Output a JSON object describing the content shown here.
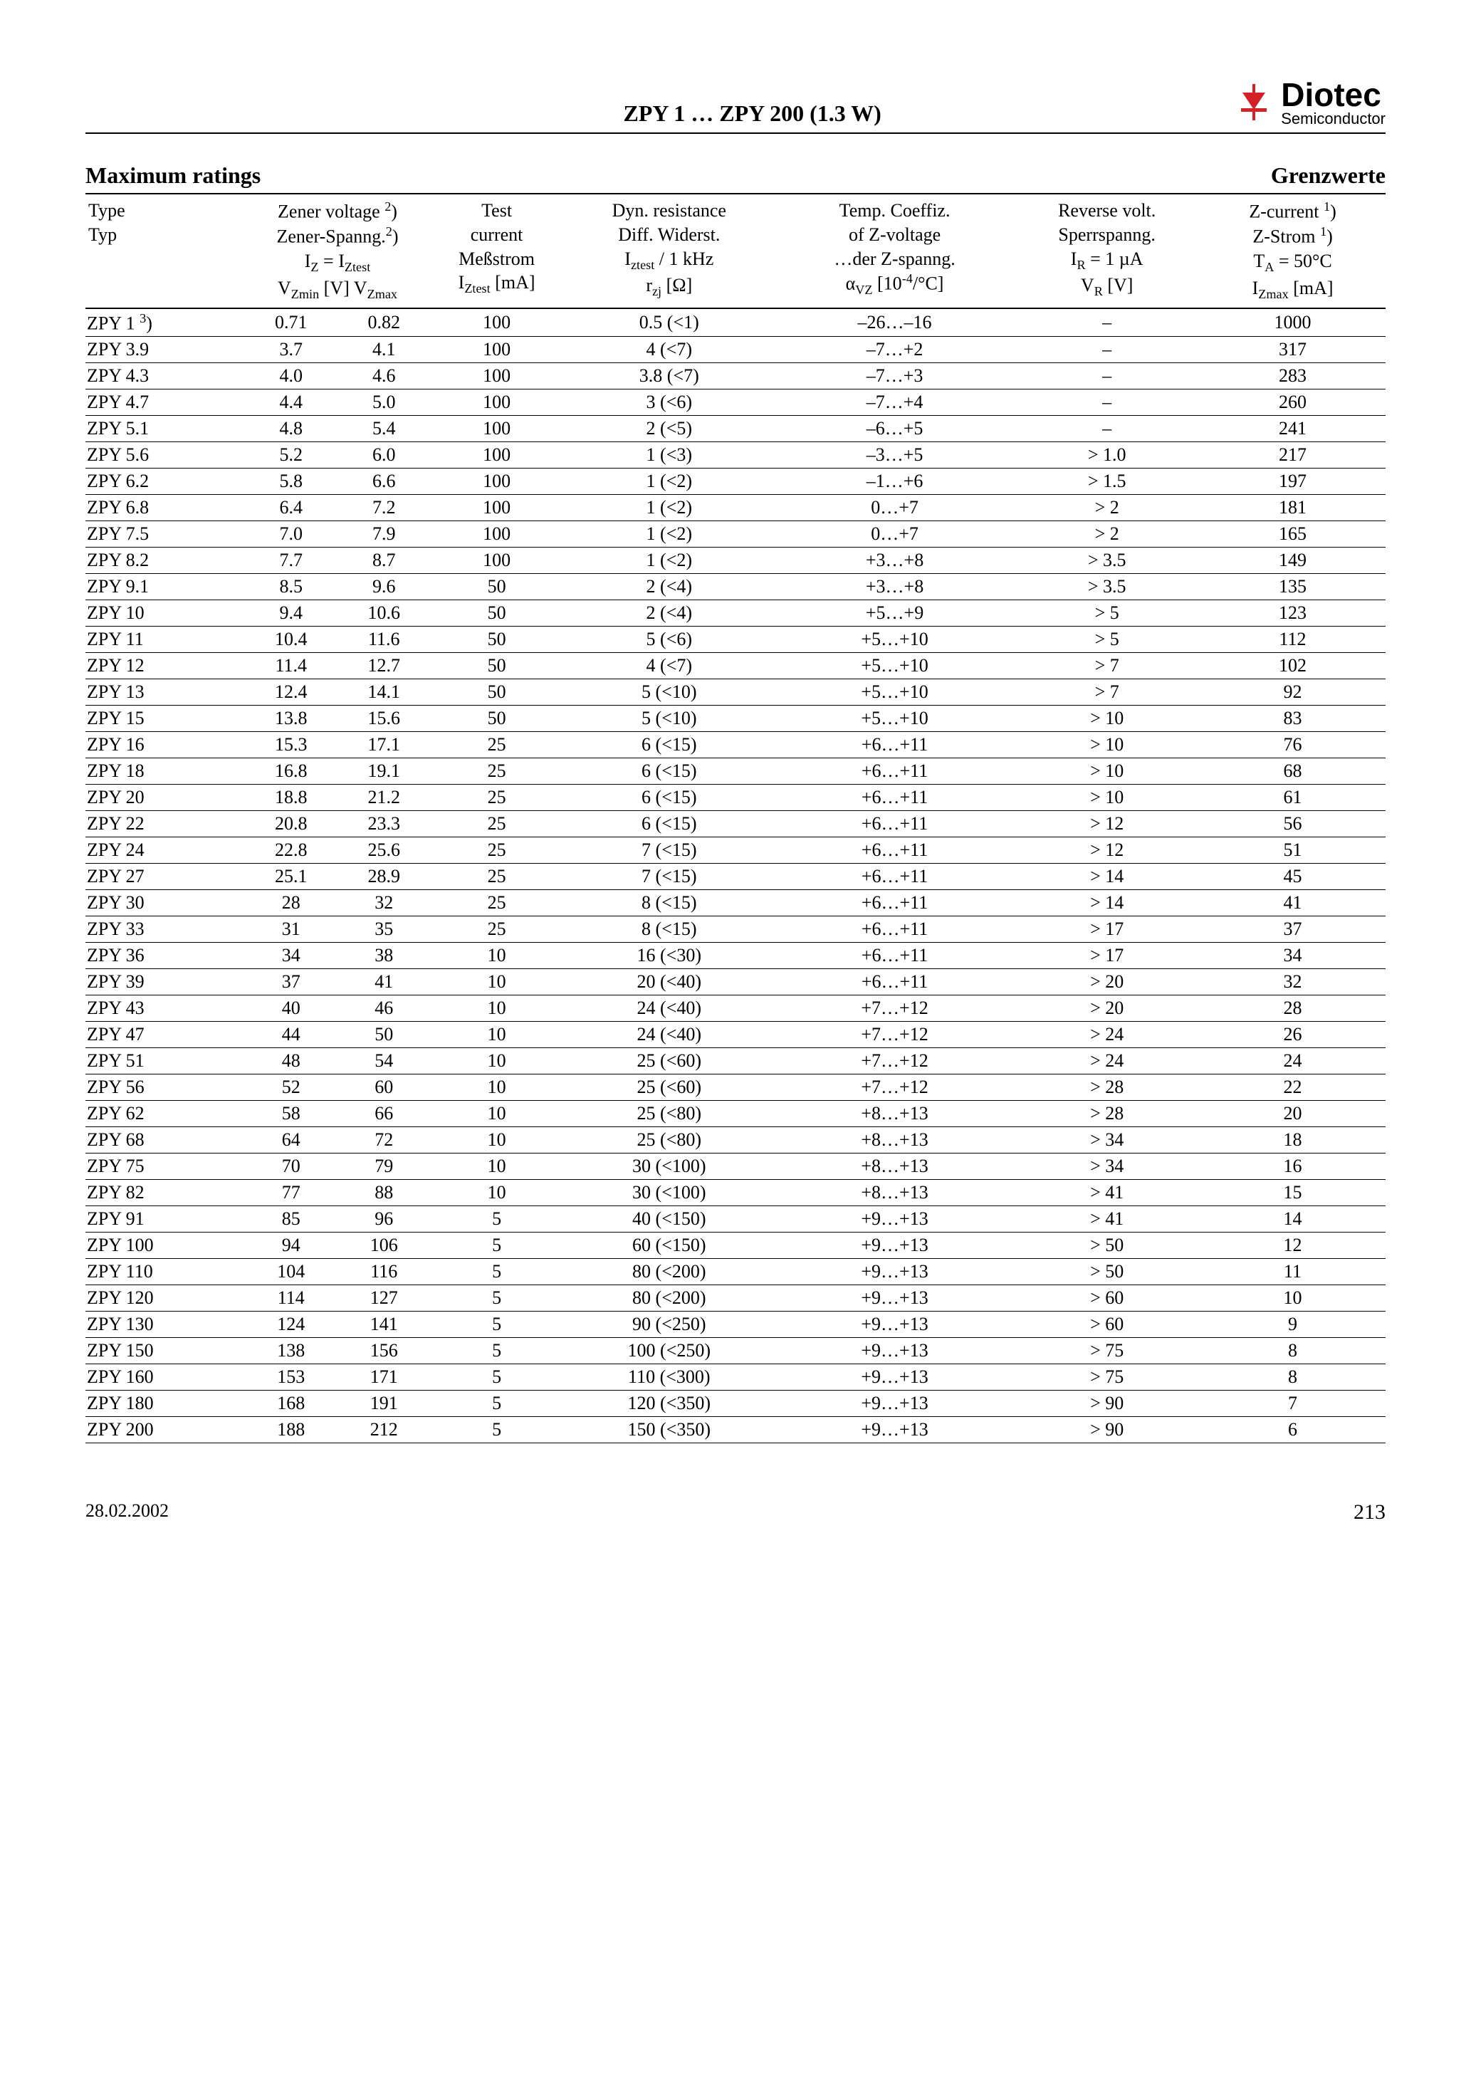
{
  "header": {
    "title_prefix": "ZPY 1 … ZPY 200 (1.3 W)",
    "logo_main": "Diotec",
    "logo_sub": "Semiconductor",
    "accent_color": "#d42027"
  },
  "section": {
    "left": "Maximum ratings",
    "right": "Grenzwerte"
  },
  "columns": {
    "type_l1": "Type",
    "type_l2": "Typ",
    "vz_l1": "Zener voltage ",
    "vz_sup1": "2",
    "vz_l2": "Zener-Spanng.",
    "vz_sup2": "2",
    "vz_l3_pre": "I",
    "vz_l3_sub1": "Z",
    "vz_l3_mid": " = I",
    "vz_l3_sub2": "Ztest",
    "vz_l4_pre": "V",
    "vz_l4_sub1": "Zmin",
    "vz_l4_mid": "  [V]  V",
    "vz_l4_sub2": "Zmax",
    "iz_l1": "Test",
    "iz_l2": "current",
    "iz_l3": "Meßstrom",
    "iz_l4_pre": "I",
    "iz_l4_sub": "Ztest",
    "iz_l4_post": " [mA]",
    "rzj_l1": "Dyn. resistance",
    "rzj_l2": "Diff. Widerst.",
    "rzj_l3_pre": "I",
    "rzj_l3_sub": "ztest",
    "rzj_l3_post": " / 1 kHz",
    "rzj_l4_pre": "r",
    "rzj_l4_sub": "zj",
    "rzj_l4_post": " [Ω]",
    "avz_l1": "Temp. Coeffiz.",
    "avz_l2": "of Z-voltage",
    "avz_l3": "…der Z-spanng.",
    "avz_l4_pre": "α",
    "avz_l4_sub": "VZ",
    "avz_l4_post": " [10",
    "avz_l4_sup": "-4",
    "avz_l4_end": "/°C]",
    "vr_l1": "Reverse volt.",
    "vr_l2": "Sperrspanng.",
    "vr_l3_pre": "I",
    "vr_l3_sub": "R",
    "vr_l3_post": " = 1 µA",
    "vr_l4_pre": "V",
    "vr_l4_sub": "R",
    "vr_l4_post": " [V]",
    "izmax_l1": "Z-current ",
    "izmax_sup1": "1",
    "izmax_l2": "Z-Strom ",
    "izmax_sup2": "1",
    "izmax_l3_pre": "T",
    "izmax_l3_sub": "A",
    "izmax_l3_post": " = 50°C",
    "izmax_l4_pre": "I",
    "izmax_l4_sub": "Zmax",
    "izmax_l4_post": " [mA]"
  },
  "rows": [
    {
      "type": "ZPY 1",
      "type_sup": "3",
      "vmin": "0.71",
      "vmax": "0.82",
      "iztest": "100",
      "rzj": "0.5 (<1)",
      "avz": "–26…–16",
      "vr": "–",
      "izmax": "1000"
    },
    {
      "type": "ZPY 3.9",
      "vmin": "3.7",
      "vmax": "4.1",
      "iztest": "100",
      "rzj": "4 (<7)",
      "avz": "–7…+2",
      "vr": "–",
      "izmax": "317"
    },
    {
      "type": "ZPY 4.3",
      "vmin": "4.0",
      "vmax": "4.6",
      "iztest": "100",
      "rzj": "3.8 (<7)",
      "avz": "–7…+3",
      "vr": "–",
      "izmax": "283"
    },
    {
      "type": "ZPY 4.7",
      "vmin": "4.4",
      "vmax": "5.0",
      "iztest": "100",
      "rzj": "3 (<6)",
      "avz": "–7…+4",
      "vr": "–",
      "izmax": "260"
    },
    {
      "type": "ZPY 5.1",
      "vmin": "4.8",
      "vmax": "5.4",
      "iztest": "100",
      "rzj": "2 (<5)",
      "avz": "–6…+5",
      "vr": "–",
      "izmax": "241"
    },
    {
      "type": "ZPY 5.6",
      "vmin": "5.2",
      "vmax": "6.0",
      "iztest": "100",
      "rzj": "1 (<3)",
      "avz": "–3…+5",
      "vr": "> 1.0",
      "izmax": "217"
    },
    {
      "type": "ZPY 6.2",
      "vmin": "5.8",
      "vmax": "6.6",
      "iztest": "100",
      "rzj": "1 (<2)",
      "avz": "–1…+6",
      "vr": "> 1.5",
      "izmax": "197"
    },
    {
      "type": "ZPY 6.8",
      "vmin": "6.4",
      "vmax": "7.2",
      "iztest": "100",
      "rzj": "1 (<2)",
      "avz": "0…+7",
      "vr": "> 2",
      "izmax": "181"
    },
    {
      "type": "ZPY 7.5",
      "vmin": "7.0",
      "vmax": "7.9",
      "iztest": "100",
      "rzj": "1 (<2)",
      "avz": "0…+7",
      "vr": "> 2",
      "izmax": "165"
    },
    {
      "type": "ZPY 8.2",
      "vmin": "7.7",
      "vmax": "8.7",
      "iztest": "100",
      "rzj": "1 (<2)",
      "avz": "+3…+8",
      "vr": "> 3.5",
      "izmax": "149"
    },
    {
      "type": "ZPY 9.1",
      "vmin": "8.5",
      "vmax": "9.6",
      "iztest": "50",
      "rzj": "2 (<4)",
      "avz": "+3…+8",
      "vr": "> 3.5",
      "izmax": "135"
    },
    {
      "type": "ZPY 10",
      "vmin": "9.4",
      "vmax": "10.6",
      "iztest": "50",
      "rzj": "2 (<4)",
      "avz": "+5…+9",
      "vr": "> 5",
      "izmax": "123"
    },
    {
      "type": "ZPY 11",
      "vmin": "10.4",
      "vmax": "11.6",
      "iztest": "50",
      "rzj": "5 (<6)",
      "avz": "+5…+10",
      "vr": "> 5",
      "izmax": "112"
    },
    {
      "type": "ZPY 12",
      "vmin": "11.4",
      "vmax": "12.7",
      "iztest": "50",
      "rzj": "4 (<7)",
      "avz": "+5…+10",
      "vr": "> 7",
      "izmax": "102"
    },
    {
      "type": "ZPY 13",
      "vmin": "12.4",
      "vmax": "14.1",
      "iztest": "50",
      "rzj": "5 (<10)",
      "avz": "+5…+10",
      "vr": "> 7",
      "izmax": "92"
    },
    {
      "type": "ZPY 15",
      "vmin": "13.8",
      "vmax": "15.6",
      "iztest": "50",
      "rzj": "5 (<10)",
      "avz": "+5…+10",
      "vr": "> 10",
      "izmax": "83"
    },
    {
      "type": "ZPY 16",
      "vmin": "15.3",
      "vmax": "17.1",
      "iztest": "25",
      "rzj": "6 (<15)",
      "avz": "+6…+11",
      "vr": "> 10",
      "izmax": "76"
    },
    {
      "type": "ZPY 18",
      "vmin": "16.8",
      "vmax": "19.1",
      "iztest": "25",
      "rzj": "6 (<15)",
      "avz": "+6…+11",
      "vr": "> 10",
      "izmax": "68"
    },
    {
      "type": "ZPY 20",
      "vmin": "18.8",
      "vmax": "21.2",
      "iztest": "25",
      "rzj": "6 (<15)",
      "avz": "+6…+11",
      "vr": "> 10",
      "izmax": "61"
    },
    {
      "type": "ZPY 22",
      "vmin": "20.8",
      "vmax": "23.3",
      "iztest": "25",
      "rzj": "6 (<15)",
      "avz": "+6…+11",
      "vr": "> 12",
      "izmax": "56"
    },
    {
      "type": "ZPY 24",
      "vmin": "22.8",
      "vmax": "25.6",
      "iztest": "25",
      "rzj": "7 (<15)",
      "avz": "+6…+11",
      "vr": "> 12",
      "izmax": "51"
    },
    {
      "type": "ZPY 27",
      "vmin": "25.1",
      "vmax": "28.9",
      "iztest": "25",
      "rzj": "7 (<15)",
      "avz": "+6…+11",
      "vr": "> 14",
      "izmax": "45"
    },
    {
      "type": "ZPY 30",
      "vmin": "28",
      "vmax": "32",
      "iztest": "25",
      "rzj": "8 (<15)",
      "avz": "+6…+11",
      "vr": "> 14",
      "izmax": "41"
    },
    {
      "type": "ZPY 33",
      "vmin": "31",
      "vmax": "35",
      "iztest": "25",
      "rzj": "8 (<15)",
      "avz": "+6…+11",
      "vr": "> 17",
      "izmax": "37"
    },
    {
      "type": "ZPY 36",
      "vmin": "34",
      "vmax": "38",
      "iztest": "10",
      "rzj": "16 (<30)",
      "avz": "+6…+11",
      "vr": "> 17",
      "izmax": "34"
    },
    {
      "type": "ZPY 39",
      "vmin": "37",
      "vmax": "41",
      "iztest": "10",
      "rzj": "20 (<40)",
      "avz": "+6…+11",
      "vr": "> 20",
      "izmax": "32"
    },
    {
      "type": "ZPY 43",
      "vmin": "40",
      "vmax": "46",
      "iztest": "10",
      "rzj": "24 (<40)",
      "avz": "+7…+12",
      "vr": "> 20",
      "izmax": "28"
    },
    {
      "type": "ZPY 47",
      "vmin": "44",
      "vmax": "50",
      "iztest": "10",
      "rzj": "24 (<40)",
      "avz": "+7…+12",
      "vr": "> 24",
      "izmax": "26"
    },
    {
      "type": "ZPY 51",
      "vmin": "48",
      "vmax": "54",
      "iztest": "10",
      "rzj": "25 (<60)",
      "avz": "+7…+12",
      "vr": "> 24",
      "izmax": "24"
    },
    {
      "type": "ZPY 56",
      "vmin": "52",
      "vmax": "60",
      "iztest": "10",
      "rzj": "25 (<60)",
      "avz": "+7…+12",
      "vr": "> 28",
      "izmax": "22"
    },
    {
      "type": "ZPY 62",
      "vmin": "58",
      "vmax": "66",
      "iztest": "10",
      "rzj": "25 (<80)",
      "avz": "+8…+13",
      "vr": "> 28",
      "izmax": "20"
    },
    {
      "type": "ZPY 68",
      "vmin": "64",
      "vmax": "72",
      "iztest": "10",
      "rzj": "25 (<80)",
      "avz": "+8…+13",
      "vr": "> 34",
      "izmax": "18"
    },
    {
      "type": "ZPY 75",
      "vmin": "70",
      "vmax": "79",
      "iztest": "10",
      "rzj": "30 (<100)",
      "avz": "+8…+13",
      "vr": "> 34",
      "izmax": "16"
    },
    {
      "type": "ZPY 82",
      "vmin": "77",
      "vmax": "88",
      "iztest": "10",
      "rzj": "30 (<100)",
      "avz": "+8…+13",
      "vr": "> 41",
      "izmax": "15"
    },
    {
      "type": "ZPY 91",
      "vmin": "85",
      "vmax": "96",
      "iztest": "5",
      "rzj": "40 (<150)",
      "avz": "+9…+13",
      "vr": "> 41",
      "izmax": "14"
    },
    {
      "type": "ZPY 100",
      "vmin": "94",
      "vmax": "106",
      "iztest": "5",
      "rzj": "60 (<150)",
      "avz": "+9…+13",
      "vr": "> 50",
      "izmax": "12"
    },
    {
      "type": "ZPY 110",
      "vmin": "104",
      "vmax": "116",
      "iztest": "5",
      "rzj": "80 (<200)",
      "avz": "+9…+13",
      "vr": "> 50",
      "izmax": "11"
    },
    {
      "type": "ZPY 120",
      "vmin": "114",
      "vmax": "127",
      "iztest": "5",
      "rzj": "80 (<200)",
      "avz": "+9…+13",
      "vr": "> 60",
      "izmax": "10"
    },
    {
      "type": "ZPY 130",
      "vmin": "124",
      "vmax": "141",
      "iztest": "5",
      "rzj": "90 (<250)",
      "avz": "+9…+13",
      "vr": "> 60",
      "izmax": "9"
    },
    {
      "type": "ZPY 150",
      "vmin": "138",
      "vmax": "156",
      "iztest": "5",
      "rzj": "100 (<250)",
      "avz": "+9…+13",
      "vr": "> 75",
      "izmax": "8"
    },
    {
      "type": "ZPY 160",
      "vmin": "153",
      "vmax": "171",
      "iztest": "5",
      "rzj": "110 (<300)",
      "avz": "+9…+13",
      "vr": "> 75",
      "izmax": "8"
    },
    {
      "type": "ZPY 180",
      "vmin": "168",
      "vmax": "191",
      "iztest": "5",
      "rzj": "120 (<350)",
      "avz": "+9…+13",
      "vr": "> 90",
      "izmax": "7"
    },
    {
      "type": "ZPY 200",
      "vmin": "188",
      "vmax": "212",
      "iztest": "5",
      "rzj": "150 (<350)",
      "avz": "+9…+13",
      "vr": "> 90",
      "izmax": "6"
    }
  ],
  "footer": {
    "date": "28.02.2002",
    "page": "213"
  }
}
